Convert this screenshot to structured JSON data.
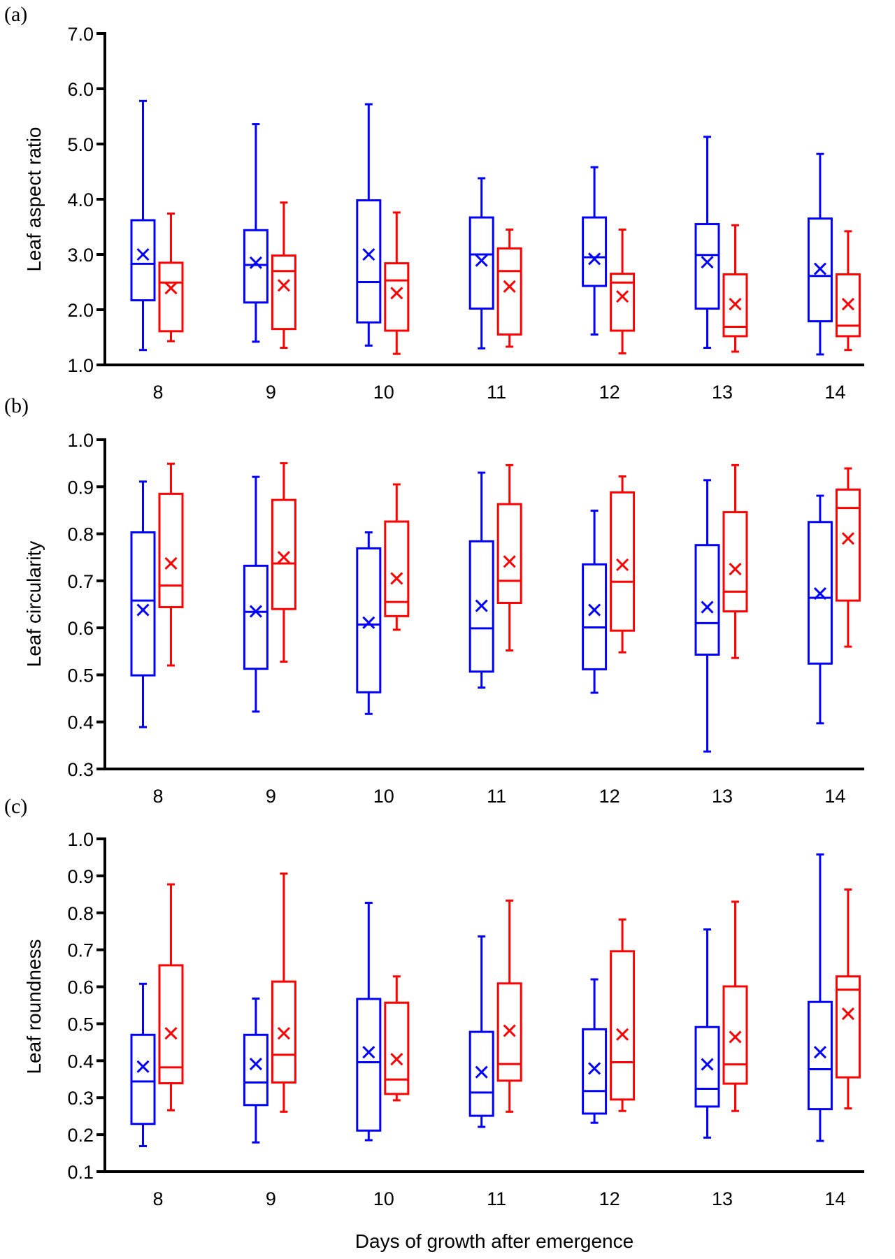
{
  "figure": {
    "xlabel": "Days of growth after emergence",
    "series_colors": {
      "blue": "#0000ff",
      "red": "#ff0000"
    }
  },
  "chart_data": [
    {
      "type": "box",
      "panel": "(a)",
      "title": "",
      "xlabel": "",
      "ylabel": "Leaf aspect ratio",
      "ylim": [
        1.0,
        7.0
      ],
      "yticks": [
        "1.0",
        "2.0",
        "3.0",
        "4.0",
        "5.0",
        "6.0",
        "7.0"
      ],
      "ytick_values": [
        1,
        2,
        3,
        4,
        5,
        6,
        7
      ],
      "categories": [
        "8",
        "9",
        "10",
        "11",
        "12",
        "13",
        "14"
      ],
      "grid": false,
      "legend": "none",
      "series": [
        {
          "name": "blue",
          "color": "#0000ff",
          "boxes": [
            {
              "min": 1.27,
              "q1": 2.17,
              "median": 2.83,
              "q3": 3.62,
              "max": 5.78,
              "mean": 3.0
            },
            {
              "min": 1.42,
              "q1": 2.13,
              "median": 2.81,
              "q3": 3.44,
              "max": 5.36,
              "mean": 2.85
            },
            {
              "min": 1.35,
              "q1": 1.77,
              "median": 2.5,
              "q3": 3.98,
              "max": 5.72,
              "mean": 3.0
            },
            {
              "min": 1.3,
              "q1": 2.02,
              "median": 3.0,
              "q3": 3.67,
              "max": 4.38,
              "mean": 2.89
            },
            {
              "min": 1.55,
              "q1": 2.43,
              "median": 2.95,
              "q3": 3.67,
              "max": 4.58,
              "mean": 2.92
            },
            {
              "min": 1.31,
              "q1": 2.02,
              "median": 2.99,
              "q3": 3.55,
              "max": 5.13,
              "mean": 2.86
            },
            {
              "min": 1.19,
              "q1": 1.79,
              "median": 2.61,
              "q3": 3.65,
              "max": 4.82,
              "mean": 2.74
            }
          ]
        },
        {
          "name": "red",
          "color": "#ff0000",
          "boxes": [
            {
              "min": 1.43,
              "q1": 1.61,
              "median": 2.49,
              "q3": 2.85,
              "max": 3.74,
              "mean": 2.39
            },
            {
              "min": 1.31,
              "q1": 1.65,
              "median": 2.7,
              "q3": 2.98,
              "max": 3.94,
              "mean": 2.44
            },
            {
              "min": 1.2,
              "q1": 1.62,
              "median": 2.53,
              "q3": 2.84,
              "max": 3.76,
              "mean": 2.3
            },
            {
              "min": 1.33,
              "q1": 1.55,
              "median": 2.7,
              "q3": 3.11,
              "max": 3.45,
              "mean": 2.42
            },
            {
              "min": 1.21,
              "q1": 1.62,
              "median": 2.49,
              "q3": 2.65,
              "max": 3.45,
              "mean": 2.24
            },
            {
              "min": 1.24,
              "q1": 1.52,
              "median": 1.69,
              "q3": 2.64,
              "max": 3.53,
              "mean": 2.1
            },
            {
              "min": 1.27,
              "q1": 1.52,
              "median": 1.71,
              "q3": 2.64,
              "max": 3.42,
              "mean": 2.1
            }
          ]
        }
      ]
    },
    {
      "type": "box",
      "panel": "(b)",
      "title": "",
      "xlabel": "",
      "ylabel": "Leaf circularity",
      "ylim": [
        0.3,
        1.0
      ],
      "yticks": [
        "0.3",
        "0.4",
        "0.5",
        "0.6",
        "0.7",
        "0.8",
        "0.9",
        "1.0"
      ],
      "ytick_values": [
        0.3,
        0.4,
        0.5,
        0.6,
        0.7,
        0.8,
        0.9,
        1.0
      ],
      "categories": [
        "8",
        "9",
        "10",
        "11",
        "12",
        "13",
        "14"
      ],
      "grid": false,
      "legend": "none",
      "series": [
        {
          "name": "blue",
          "color": "#0000ff",
          "boxes": [
            {
              "min": 0.389,
              "q1": 0.499,
              "median": 0.658,
              "q3": 0.803,
              "max": 0.911,
              "mean": 0.638
            },
            {
              "min": 0.422,
              "q1": 0.513,
              "median": 0.634,
              "q3": 0.732,
              "max": 0.921,
              "mean": 0.635
            },
            {
              "min": 0.417,
              "q1": 0.463,
              "median": 0.607,
              "q3": 0.769,
              "max": 0.803,
              "mean": 0.611
            },
            {
              "min": 0.473,
              "q1": 0.507,
              "median": 0.599,
              "q3": 0.784,
              "max": 0.93,
              "mean": 0.647
            },
            {
              "min": 0.462,
              "q1": 0.512,
              "median": 0.601,
              "q3": 0.735,
              "max": 0.849,
              "mean": 0.638
            },
            {
              "min": 0.337,
              "q1": 0.543,
              "median": 0.61,
              "q3": 0.776,
              "max": 0.914,
              "mean": 0.644
            },
            {
              "min": 0.397,
              "q1": 0.524,
              "median": 0.664,
              "q3": 0.825,
              "max": 0.881,
              "mean": 0.673
            }
          ]
        },
        {
          "name": "red",
          "color": "#ff0000",
          "boxes": [
            {
              "min": 0.52,
              "q1": 0.644,
              "median": 0.69,
              "q3": 0.885,
              "max": 0.949,
              "mean": 0.737
            },
            {
              "min": 0.528,
              "q1": 0.64,
              "median": 0.737,
              "q3": 0.872,
              "max": 0.95,
              "mean": 0.75
            },
            {
              "min": 0.596,
              "q1": 0.625,
              "median": 0.655,
              "q3": 0.826,
              "max": 0.905,
              "mean": 0.705
            },
            {
              "min": 0.552,
              "q1": 0.653,
              "median": 0.7,
              "q3": 0.863,
              "max": 0.946,
              "mean": 0.741
            },
            {
              "min": 0.548,
              "q1": 0.594,
              "median": 0.698,
              "q3": 0.888,
              "max": 0.922,
              "mean": 0.734
            },
            {
              "min": 0.536,
              "q1": 0.635,
              "median": 0.677,
              "q3": 0.846,
              "max": 0.946,
              "mean": 0.725
            },
            {
              "min": 0.56,
              "q1": 0.658,
              "median": 0.855,
              "q3": 0.894,
              "max": 0.939,
              "mean": 0.79
            }
          ]
        }
      ]
    },
    {
      "type": "box",
      "panel": "(c)",
      "title": "",
      "xlabel": "Days of growth after emergence",
      "ylabel": "Leaf roundness",
      "ylim": [
        0.1,
        1.0
      ],
      "yticks": [
        "0.1",
        "0.2",
        "0.3",
        "0.4",
        "0.5",
        "0.6",
        "0.7",
        "0.8",
        "0.9",
        "1.0"
      ],
      "ytick_values": [
        0.1,
        0.2,
        0.3,
        0.4,
        0.5,
        0.6,
        0.7,
        0.8,
        0.9,
        1.0
      ],
      "categories": [
        "8",
        "9",
        "10",
        "11",
        "12",
        "13",
        "14"
      ],
      "grid": false,
      "legend": "none",
      "series": [
        {
          "name": "blue",
          "color": "#0000ff",
          "boxes": [
            {
              "min": 0.169,
              "q1": 0.229,
              "median": 0.344,
              "q3": 0.47,
              "max": 0.608,
              "mean": 0.384
            },
            {
              "min": 0.179,
              "q1": 0.28,
              "median": 0.341,
              "q3": 0.47,
              "max": 0.568,
              "mean": 0.391
            },
            {
              "min": 0.185,
              "q1": 0.211,
              "median": 0.396,
              "q3": 0.567,
              "max": 0.827,
              "mean": 0.423
            },
            {
              "min": 0.221,
              "q1": 0.251,
              "median": 0.314,
              "q3": 0.478,
              "max": 0.736,
              "mean": 0.369
            },
            {
              "min": 0.232,
              "q1": 0.257,
              "median": 0.318,
              "q3": 0.485,
              "max": 0.62,
              "mean": 0.379
            },
            {
              "min": 0.192,
              "q1": 0.276,
              "median": 0.324,
              "q3": 0.491,
              "max": 0.755,
              "mean": 0.39
            },
            {
              "min": 0.183,
              "q1": 0.269,
              "median": 0.377,
              "q3": 0.559,
              "max": 0.958,
              "mean": 0.423
            }
          ]
        },
        {
          "name": "red",
          "color": "#ff0000",
          "boxes": [
            {
              "min": 0.266,
              "q1": 0.339,
              "median": 0.382,
              "q3": 0.658,
              "max": 0.877,
              "mean": 0.474
            },
            {
              "min": 0.262,
              "q1": 0.341,
              "median": 0.416,
              "q3": 0.614,
              "max": 0.906,
              "mean": 0.474
            },
            {
              "min": 0.293,
              "q1": 0.31,
              "median": 0.349,
              "q3": 0.557,
              "max": 0.628,
              "mean": 0.404
            },
            {
              "min": 0.262,
              "q1": 0.346,
              "median": 0.391,
              "q3": 0.609,
              "max": 0.833,
              "mean": 0.481
            },
            {
              "min": 0.264,
              "q1": 0.295,
              "median": 0.396,
              "q3": 0.696,
              "max": 0.782,
              "mean": 0.471
            },
            {
              "min": 0.264,
              "q1": 0.338,
              "median": 0.39,
              "q3": 0.601,
              "max": 0.83,
              "mean": 0.464
            },
            {
              "min": 0.271,
              "q1": 0.355,
              "median": 0.592,
              "q3": 0.628,
              "max": 0.863,
              "mean": 0.527
            }
          ]
        }
      ]
    }
  ]
}
